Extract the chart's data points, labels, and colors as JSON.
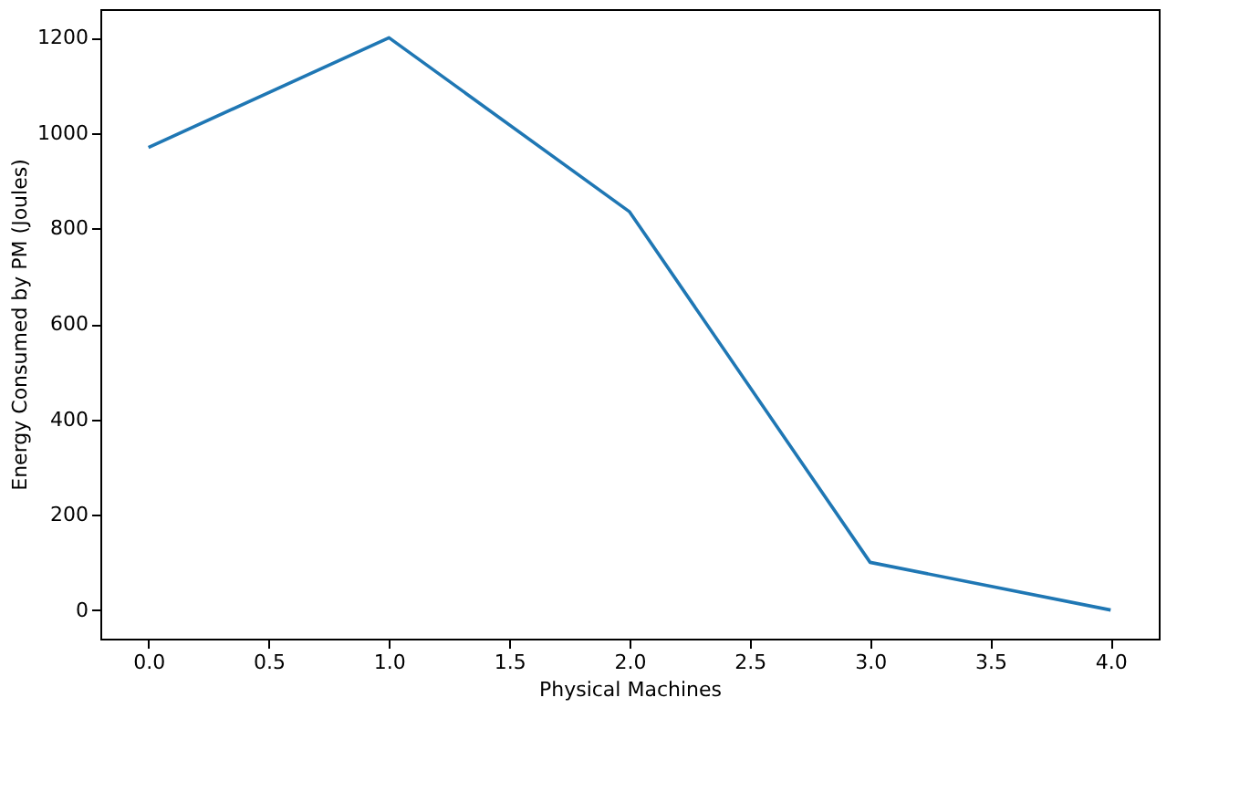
{
  "chart_data": {
    "type": "line",
    "xlabel": "Physical Machines",
    "ylabel": "Energy Consumed by PM (Joules)",
    "x": [
      0,
      1,
      2,
      3,
      4
    ],
    "series": [
      {
        "color": "#1f77b4",
        "values": [
          970,
          1200,
          835,
          100,
          0
        ]
      }
    ],
    "xlim": [
      -0.2,
      4.2
    ],
    "xticks": [
      {
        "value": 0,
        "label": "0.0"
      },
      {
        "value": 0.5,
        "label": "0.5"
      },
      {
        "value": 1,
        "label": "1.0"
      },
      {
        "value": 1.5,
        "label": "1.5"
      },
      {
        "value": 2,
        "label": "2.0"
      },
      {
        "value": 2.5,
        "label": "2.5"
      },
      {
        "value": 3,
        "label": "3.0"
      },
      {
        "value": 3.5,
        "label": "3.5"
      },
      {
        "value": 4,
        "label": "4.0"
      }
    ],
    "ylim": [
      -60,
      1260
    ],
    "yticks": [
      0,
      200,
      400,
      600,
      800,
      1000,
      1200
    ],
    "grid": false,
    "marker": "none",
    "line_style": "solid"
  }
}
